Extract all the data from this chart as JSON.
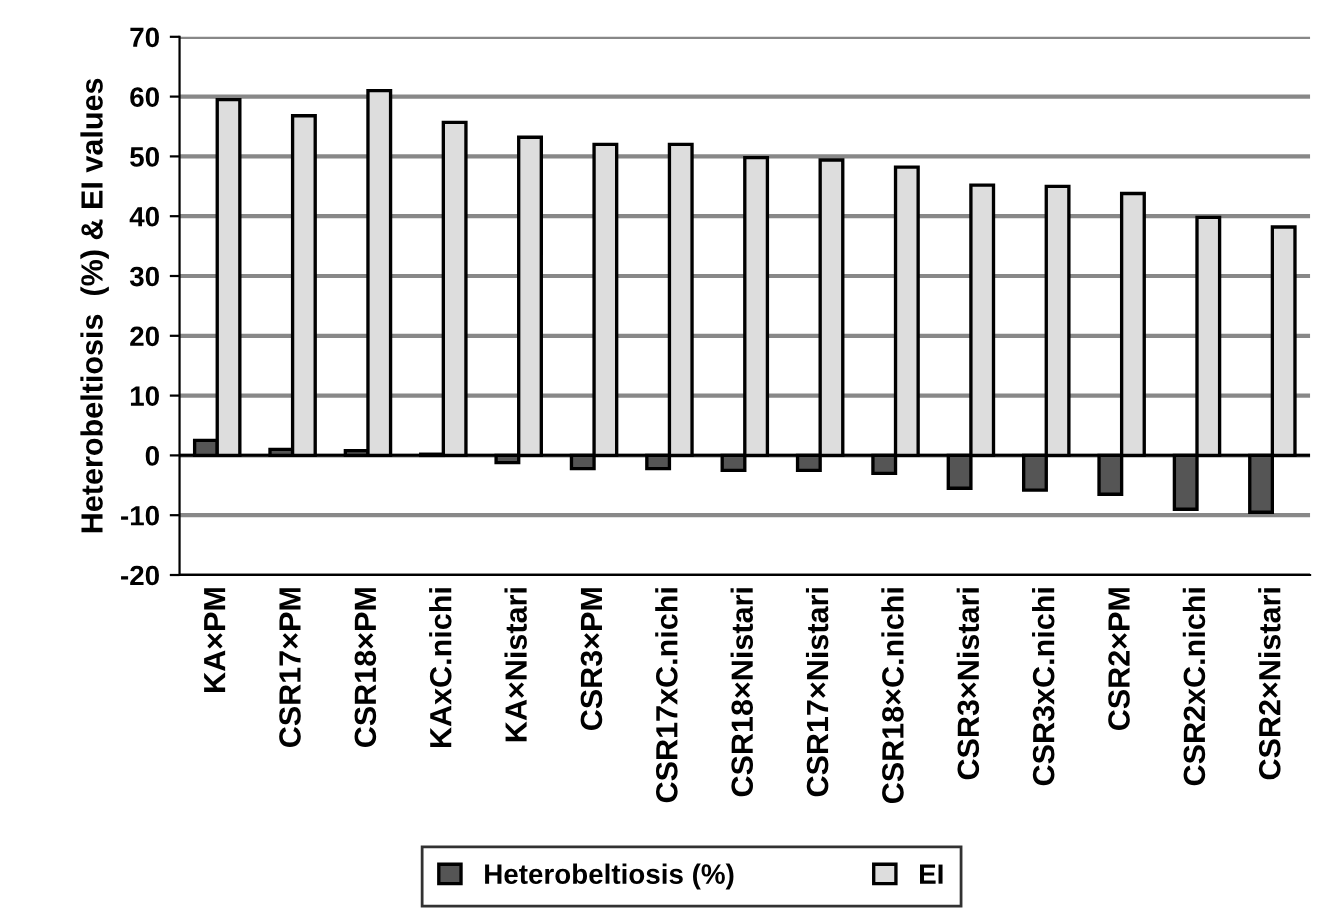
{
  "chart_data": {
    "type": "bar",
    "ylabel": "Heterobeltiosis  (%) & EI values",
    "categories": [
      "KA×PM",
      "CSR17×PM",
      "CSR18×PM",
      "KAxC.nichi",
      "KA×Nistari",
      "CSR3×PM",
      "CSR17xC.nichi",
      "CSR18×Nistari",
      "CSR17×Nistari",
      "CSR18×C.nichi",
      "CSR3×Nistari",
      "CSR3xC.nichi",
      "CSR2×PM",
      "CSR2xC.nichi",
      "CSR2×Nistari"
    ],
    "series": [
      {
        "name": "Heterobeltiosis (%)",
        "color": "#555555",
        "values": [
          2.5,
          1,
          0.8,
          0.2,
          -1.2,
          -2.2,
          -2.2,
          -2.5,
          -2.5,
          -3,
          -5.5,
          -5.8,
          -6.5,
          -9,
          -9.5
        ]
      },
      {
        "name": "EI",
        "color": "#dddddd",
        "values": [
          59.5,
          56.8,
          61,
          55.7,
          53.2,
          52,
          52,
          49.8,
          49.4,
          48.2,
          45.2,
          45,
          43.8,
          39.8,
          38.2
        ]
      }
    ],
    "ylim": [
      -20,
      70
    ],
    "yticks": [
      -20,
      -10,
      0,
      10,
      20,
      30,
      40,
      50,
      60,
      70
    ],
    "grid": "y",
    "legend": "bottom"
  }
}
